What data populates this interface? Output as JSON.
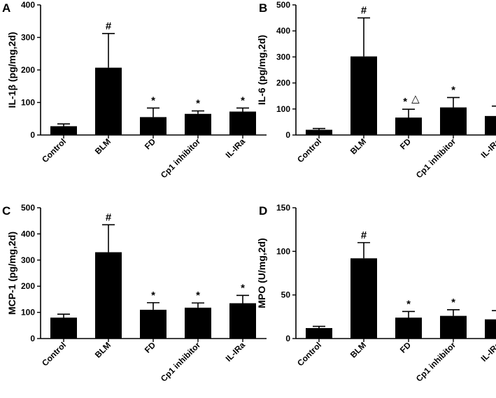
{
  "chart_data": [
    {
      "type": "bar",
      "panel_label": "A",
      "ylabel": "IL-1β (pg/mg,2d)",
      "categories": [
        "Control",
        "BLM",
        "FD",
        "Cp1 inhibitor",
        "IL-IRa"
      ],
      "values": [
        27,
        207,
        55,
        65,
        72
      ],
      "errors": [
        7,
        105,
        28,
        9,
        11
      ],
      "ylim": [
        0,
        400
      ],
      "yticks": [
        "0",
        "100",
        "200",
        "300",
        "400"
      ],
      "annotations": [
        "",
        "#",
        "*",
        "*",
        "*"
      ]
    },
    {
      "type": "bar",
      "panel_label": "B",
      "ylabel": "IL-6 (pg/mg,2d)",
      "categories": [
        "Control",
        "BLM",
        "FD",
        "Cp1 inhibitor",
        "IL-IRa"
      ],
      "values": [
        20,
        302,
        67,
        106,
        73
      ],
      "errors": [
        5,
        148,
        32,
        38,
        38
      ],
      "ylim": [
        0,
        500
      ],
      "yticks": [
        "0",
        "100",
        "200",
        "300",
        "400",
        "500"
      ],
      "annotations": [
        "",
        "#",
        "* △",
        "*",
        "*"
      ]
    },
    {
      "type": "bar",
      "panel_label": "C",
      "ylabel": "MCP-1 (pg/mg,2d)",
      "categories": [
        "Control",
        "BLM",
        "FD",
        "Cp1 inhibitor",
        "IL-IRa"
      ],
      "values": [
        80,
        330,
        110,
        118,
        135
      ],
      "errors": [
        13,
        105,
        27,
        18,
        30
      ],
      "ylim": [
        0,
        500
      ],
      "yticks": [
        "0",
        "100",
        "200",
        "300",
        "400",
        "500"
      ],
      "annotations": [
        "",
        "#",
        "*",
        "*",
        "*"
      ]
    },
    {
      "type": "bar",
      "panel_label": "D",
      "ylabel": "MPO (U/mg,2d)",
      "categories": [
        "Control",
        "BLM",
        "FD",
        "Cp1 inhibitor",
        "IL-IRa"
      ],
      "values": [
        12,
        92,
        24,
        26,
        22
      ],
      "errors": [
        2,
        18,
        7,
        7,
        10
      ],
      "ylim": [
        0,
        150
      ],
      "yticks": [
        "0",
        "50",
        "100",
        "150"
      ],
      "annotations": [
        "",
        "#",
        "*",
        "*",
        "*"
      ]
    }
  ]
}
